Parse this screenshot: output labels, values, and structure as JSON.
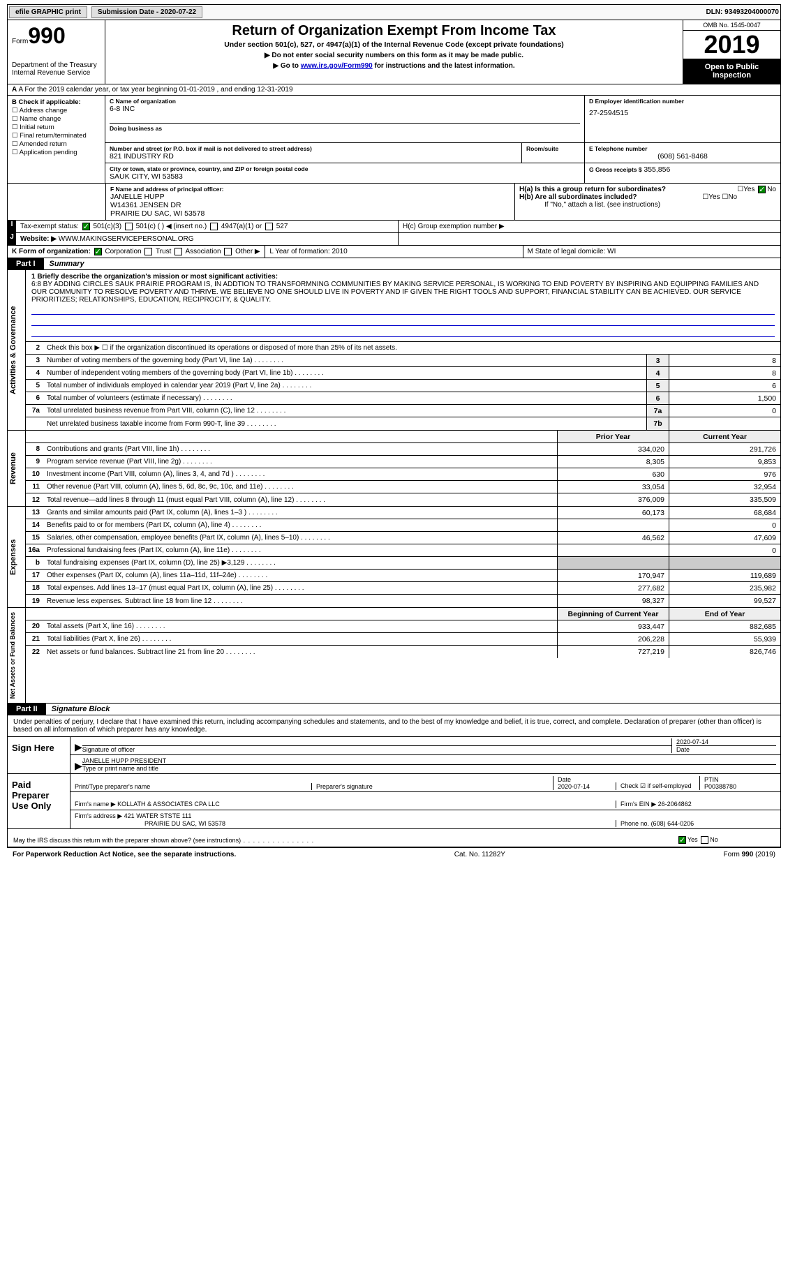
{
  "topbar": {
    "efile": "efile GRAPHIC print",
    "sub_label": "Submission Date - 2020-07-22",
    "dln": "DLN: 93493204000070"
  },
  "header": {
    "form_label": "Form",
    "form_num": "990",
    "dept": "Department of the Treasury\nInternal Revenue Service",
    "title": "Return of Organization Exempt From Income Tax",
    "subtitle": "Under section 501(c), 527, or 4947(a)(1) of the Internal Revenue Code (except private foundations)",
    "note1": "▶ Do not enter social security numbers on this form as it may be made public.",
    "note2_a": "▶ Go to ",
    "note2_link": "www.irs.gov/Form990",
    "note2_b": " for instructions and the latest information.",
    "omb": "OMB No. 1545-0047",
    "year": "2019",
    "open": "Open to Public Inspection"
  },
  "row_a": "A For the 2019 calendar year, or tax year beginning 01-01-2019    , and ending 12-31-2019",
  "box_b": {
    "hdr": "B Check if applicable:",
    "items": [
      "Address change",
      "Name change",
      "Initial return",
      "Final return/terminated",
      "Amended return",
      "Application pending"
    ]
  },
  "box_c": {
    "label": "C Name of organization",
    "name": "6-8 INC",
    "dba_label": "Doing business as",
    "addr_label": "Number and street (or P.O. box if mail is not delivered to street address)",
    "addr": "821 INDUSTRY RD",
    "room_label": "Room/suite",
    "city_label": "City or town, state or province, country, and ZIP or foreign postal code",
    "city": "SAUK CITY, WI  53583"
  },
  "box_d": {
    "label": "D Employer identification number",
    "val": "27-2594515"
  },
  "box_e": {
    "label": "E Telephone number",
    "val": "(608) 561-8468"
  },
  "box_g": {
    "label": "G Gross receipts $",
    "val": "355,856"
  },
  "box_f": {
    "label": "F  Name and address of principal officer:",
    "name": "JANELLE HUPP",
    "addr1": "W14361 JENSEN DR",
    "addr2": "PRAIRIE DU SAC, WI  53578"
  },
  "box_h": {
    "ha": "H(a)  Is this a group return for subordinates?",
    "hb": "H(b)  Are all subordinates included?",
    "hb_note": "If \"No,\" attach a list. (see instructions)",
    "hc": "H(c)  Group exemption number ▶"
  },
  "tax_status": {
    "label": "Tax-exempt status:",
    "opts": [
      "501(c)(3)",
      "501(c) (  ) ◀ (insert no.)",
      "4947(a)(1) or",
      "527"
    ]
  },
  "website": {
    "label": "Website: ▶",
    "val": "WWW.MAKINGSERVICEPERSONAL.ORG"
  },
  "box_k": "K Form of organization:",
  "box_k_opts": [
    "Corporation",
    "Trust",
    "Association",
    "Other ▶"
  ],
  "box_l": "L Year of formation: 2010",
  "box_m": "M State of legal domicile: WI",
  "part1": {
    "tag": "Part I",
    "title": "Summary"
  },
  "mission": {
    "q": "1  Briefly describe the organization's mission or most significant activities:",
    "text": "6:8 BY ADDING CIRCLES SAUK PRAIRIE PROGRAM IS, IN ADDTION TO TRANSFORMNING COMMUNITIES BY MAKING SERVICE PERSONAL, IS WORKING TO END POVERTY BY INSPIRING AND EQUIPPING FAMILIES AND OUR COMMUNITY TO RESOLVE POVERTY AND THRIVE. WE BELIEVE NO ONE SHOULD LIVE IN POVERTY AND IF GIVEN THE RIGHT TOOLS AND SUPPORT, FINANCIAL STABILITY CAN BE ACHIEVED. OUR SERVICE PRIORITIZES; RELATIONSHIPS, EDUCATION, RECIPROCITY, & QUALITY."
  },
  "gov_lines": [
    {
      "n": "2",
      "t": "Check this box ▶ ☐ if the organization discontinued its operations or disposed of more than 25% of its net assets."
    },
    {
      "n": "3",
      "t": "Number of voting members of the governing body (Part VI, line 1a)",
      "box": "3",
      "v": "8"
    },
    {
      "n": "4",
      "t": "Number of independent voting members of the governing body (Part VI, line 1b)",
      "box": "4",
      "v": "8"
    },
    {
      "n": "5",
      "t": "Total number of individuals employed in calendar year 2019 (Part V, line 2a)",
      "box": "5",
      "v": "6"
    },
    {
      "n": "6",
      "t": "Total number of volunteers (estimate if necessary)",
      "box": "6",
      "v": "1,500"
    },
    {
      "n": "7a",
      "t": "Total unrelated business revenue from Part VIII, column (C), line 12",
      "box": "7a",
      "v": "0"
    },
    {
      "n": "",
      "t": "Net unrelated business taxable income from Form 990-T, line 39",
      "box": "7b",
      "v": ""
    }
  ],
  "col_hdrs": {
    "prior": "Prior Year",
    "current": "Current Year"
  },
  "rev_lines": [
    {
      "n": "8",
      "t": "Contributions and grants (Part VIII, line 1h)",
      "p": "334,020",
      "c": "291,726"
    },
    {
      "n": "9",
      "t": "Program service revenue (Part VIII, line 2g)",
      "p": "8,305",
      "c": "9,853"
    },
    {
      "n": "10",
      "t": "Investment income (Part VIII, column (A), lines 3, 4, and 7d )",
      "p": "630",
      "c": "976"
    },
    {
      "n": "11",
      "t": "Other revenue (Part VIII, column (A), lines 5, 6d, 8c, 9c, 10c, and 11e)",
      "p": "33,054",
      "c": "32,954"
    },
    {
      "n": "12",
      "t": "Total revenue—add lines 8 through 11 (must equal Part VIII, column (A), line 12)",
      "p": "376,009",
      "c": "335,509"
    }
  ],
  "exp_lines": [
    {
      "n": "13",
      "t": "Grants and similar amounts paid (Part IX, column (A), lines 1–3 )",
      "p": "60,173",
      "c": "68,684"
    },
    {
      "n": "14",
      "t": "Benefits paid to or for members (Part IX, column (A), line 4)",
      "p": "",
      "c": "0"
    },
    {
      "n": "15",
      "t": "Salaries, other compensation, employee benefits (Part IX, column (A), lines 5–10)",
      "p": "46,562",
      "c": "47,609"
    },
    {
      "n": "16a",
      "t": "Professional fundraising fees (Part IX, column (A), line 11e)",
      "p": "",
      "c": "0"
    },
    {
      "n": "b",
      "t": "Total fundraising expenses (Part IX, column (D), line 25) ▶3,129",
      "p": "",
      "c": "",
      "noval": true
    },
    {
      "n": "17",
      "t": "Other expenses (Part IX, column (A), lines 11a–11d, 11f–24e)",
      "p": "170,947",
      "c": "119,689"
    },
    {
      "n": "18",
      "t": "Total expenses. Add lines 13–17 (must equal Part IX, column (A), line 25)",
      "p": "277,682",
      "c": "235,982"
    },
    {
      "n": "19",
      "t": "Revenue less expenses. Subtract line 18 from line 12",
      "p": "98,327",
      "c": "99,527"
    }
  ],
  "na_hdrs": {
    "beg": "Beginning of Current Year",
    "end": "End of Year"
  },
  "na_lines": [
    {
      "n": "20",
      "t": "Total assets (Part X, line 16)",
      "p": "933,447",
      "c": "882,685"
    },
    {
      "n": "21",
      "t": "Total liabilities (Part X, line 26)",
      "p": "206,228",
      "c": "55,939"
    },
    {
      "n": "22",
      "t": "Net assets or fund balances. Subtract line 21 from line 20",
      "p": "727,219",
      "c": "826,746"
    }
  ],
  "part2": {
    "tag": "Part II",
    "title": "Signature Block"
  },
  "sig": {
    "intro": "Under penalties of perjury, I declare that I have examined this return, including accompanying schedules and statements, and to the best of my knowledge and belief, it is true, correct, and complete. Declaration of preparer (other than officer) is based on all information of which preparer has any knowledge.",
    "sign_here": "Sign Here",
    "sig_officer": "Signature of officer",
    "date1": "2020-07-14",
    "date_label": "Date",
    "name_title": "JANELLE HUPP  PRESIDENT",
    "name_label": "Type or print name and title",
    "paid": "Paid Preparer Use Only",
    "prep_name_label": "Print/Type preparer's name",
    "prep_sig_label": "Preparer's signature",
    "date2_label": "Date",
    "date2": "2020-07-14",
    "check_self": "Check ☑ if self-employed",
    "ptin_label": "PTIN",
    "ptin": "P00388780",
    "firm_name_label": "Firm's name    ▶",
    "firm_name": "KOLLATH & ASSOCIATES CPA LLC",
    "firm_ein_label": "Firm's EIN ▶",
    "firm_ein": "26-2064862",
    "firm_addr_label": "Firm's address ▶",
    "firm_addr1": "421 WATER STSTE 111",
    "firm_addr2": "PRAIRIE DU SAC, WI  53578",
    "phone_label": "Phone no.",
    "phone": "(608) 644-0206",
    "discuss": "May the IRS discuss this return with the preparer shown above? (see instructions)"
  },
  "footer": {
    "left": "For Paperwork Reduction Act Notice, see the separate instructions.",
    "mid": "Cat. No. 11282Y",
    "right": "Form 990 (2019)"
  },
  "vtabs": {
    "gov": "Activities & Governance",
    "rev": "Revenue",
    "exp": "Expenses",
    "na": "Net Assets or Fund Balances"
  },
  "yn": {
    "yes": "Yes",
    "no": "No"
  }
}
